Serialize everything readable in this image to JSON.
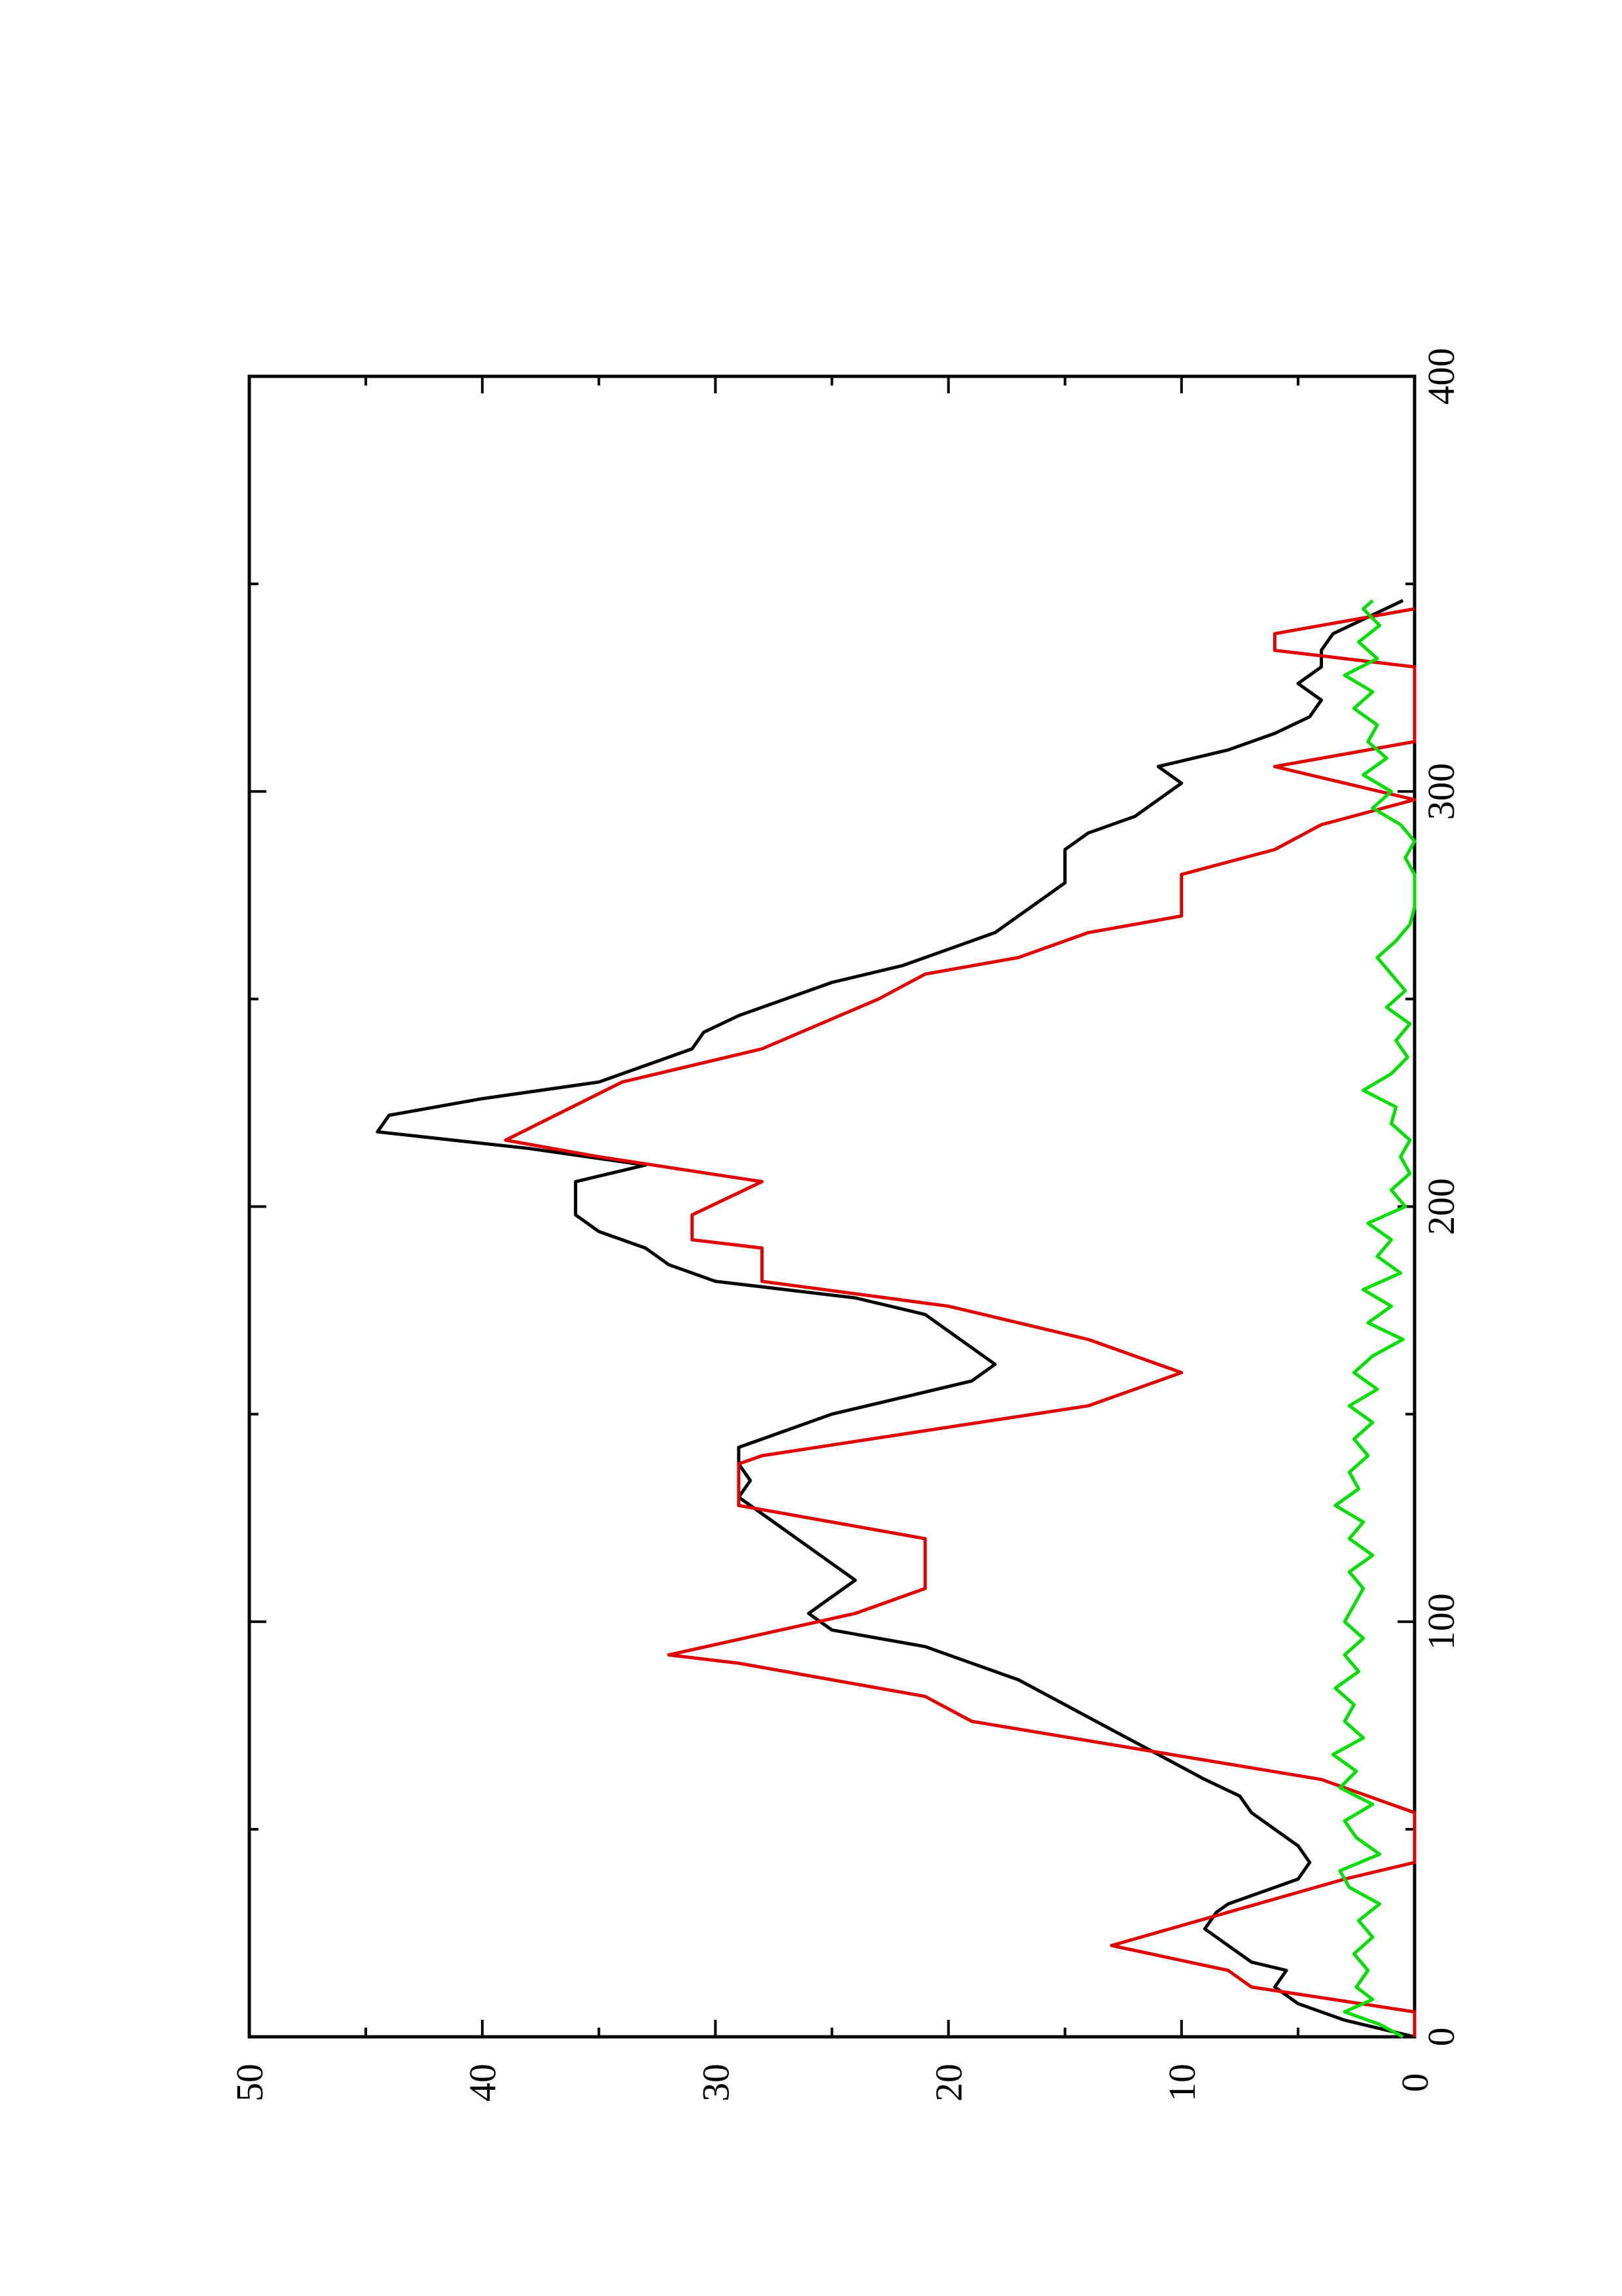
{
  "chart_data": {
    "type": "line",
    "orientation": "rotated-90-counterclockwise",
    "title": "",
    "xlabel": "",
    "ylabel": "",
    "xlim": [
      0,
      400
    ],
    "ylim": [
      0,
      50
    ],
    "xticks": [
      0,
      100,
      200,
      300,
      400
    ],
    "yticks": [
      0,
      10,
      20,
      30,
      40,
      50
    ],
    "grid": false,
    "legend": "none",
    "series": [
      {
        "color": "#000000",
        "points": [
          [
            0,
            0
          ],
          [
            4,
            3
          ],
          [
            8,
            5
          ],
          [
            12,
            6
          ],
          [
            16,
            5.5
          ],
          [
            18,
            7
          ],
          [
            22,
            8
          ],
          [
            26,
            9
          ],
          [
            30,
            8.5
          ],
          [
            32,
            8
          ],
          [
            36,
            6
          ],
          [
            38,
            5
          ],
          [
            42,
            4.5
          ],
          [
            46,
            5
          ],
          [
            50,
            6
          ],
          [
            54,
            7
          ],
          [
            58,
            7.5
          ],
          [
            62,
            9
          ],
          [
            68,
            11
          ],
          [
            74,
            13
          ],
          [
            80,
            15
          ],
          [
            86,
            17
          ],
          [
            90,
            19
          ],
          [
            94,
            21
          ],
          [
            98,
            25
          ],
          [
            102,
            26
          ],
          [
            106,
            25
          ],
          [
            110,
            24
          ],
          [
            114,
            25
          ],
          [
            118,
            26
          ],
          [
            122,
            27
          ],
          [
            126,
            28
          ],
          [
            130,
            29
          ],
          [
            134,
            28.5
          ],
          [
            138,
            29
          ],
          [
            142,
            29
          ],
          [
            146,
            27
          ],
          [
            150,
            25
          ],
          [
            154,
            22
          ],
          [
            158,
            19
          ],
          [
            162,
            18
          ],
          [
            166,
            19
          ],
          [
            170,
            20
          ],
          [
            174,
            21
          ],
          [
            178,
            24
          ],
          [
            182,
            30
          ],
          [
            186,
            32
          ],
          [
            190,
            33
          ],
          [
            194,
            35
          ],
          [
            198,
            36
          ],
          [
            202,
            36
          ],
          [
            206,
            36
          ],
          [
            210,
            33
          ],
          [
            214,
            38
          ],
          [
            218,
            44.5
          ],
          [
            222,
            44
          ],
          [
            226,
            40
          ],
          [
            230,
            35
          ],
          [
            234,
            33
          ],
          [
            238,
            31
          ],
          [
            242,
            30.5
          ],
          [
            246,
            29
          ],
          [
            250,
            27
          ],
          [
            254,
            25
          ],
          [
            258,
            22
          ],
          [
            262,
            20
          ],
          [
            266,
            18
          ],
          [
            270,
            17
          ],
          [
            274,
            16
          ],
          [
            278,
            15
          ],
          [
            282,
            15
          ],
          [
            286,
            15
          ],
          [
            290,
            14
          ],
          [
            294,
            12
          ],
          [
            298,
            11
          ],
          [
            302,
            10
          ],
          [
            306,
            11
          ],
          [
            310,
            8
          ],
          [
            314,
            6
          ],
          [
            318,
            4.5
          ],
          [
            322,
            4
          ],
          [
            326,
            5
          ],
          [
            330,
            4
          ],
          [
            334,
            4
          ],
          [
            338,
            3.5
          ],
          [
            342,
            2
          ],
          [
            346,
            0.5
          ]
        ]
      },
      {
        "color": "#e00000",
        "points": [
          [
            0,
            0
          ],
          [
            6,
            0
          ],
          [
            12,
            7
          ],
          [
            16,
            8
          ],
          [
            22,
            13
          ],
          [
            30,
            8
          ],
          [
            38,
            3
          ],
          [
            42,
            0
          ],
          [
            54,
            0
          ],
          [
            62,
            4
          ],
          [
            76,
            19
          ],
          [
            82,
            21
          ],
          [
            90,
            29
          ],
          [
            92,
            32
          ],
          [
            102,
            24
          ],
          [
            108,
            21
          ],
          [
            120,
            21
          ],
          [
            126,
            27
          ],
          [
            128,
            29
          ],
          [
            138,
            29
          ],
          [
            140,
            28
          ],
          [
            152,
            14
          ],
          [
            160,
            10
          ],
          [
            168,
            14
          ],
          [
            172,
            17
          ],
          [
            176,
            20
          ],
          [
            182,
            28
          ],
          [
            190,
            28
          ],
          [
            192,
            31
          ],
          [
            198,
            31
          ],
          [
            206,
            28
          ],
          [
            212,
            35
          ],
          [
            216,
            39
          ],
          [
            230,
            34
          ],
          [
            238,
            28
          ],
          [
            250,
            23
          ],
          [
            256,
            21
          ],
          [
            260,
            17
          ],
          [
            266,
            14
          ],
          [
            270,
            10
          ],
          [
            280,
            10
          ],
          [
            286,
            6
          ],
          [
            292,
            4
          ],
          [
            298,
            0
          ],
          [
            306,
            6
          ],
          [
            312,
            0
          ],
          [
            330,
            0
          ],
          [
            334,
            6
          ],
          [
            338,
            6
          ],
          [
            344,
            0
          ]
        ]
      },
      {
        "color": "#00e000",
        "points": [
          [
            0,
            0.5
          ],
          [
            3,
            1.5
          ],
          [
            6,
            3
          ],
          [
            9,
            1.8
          ],
          [
            12,
            2.5
          ],
          [
            16,
            2
          ],
          [
            20,
            2.6
          ],
          [
            24,
            1.8
          ],
          [
            28,
            2.4
          ],
          [
            32,
            1.5
          ],
          [
            36,
            2.8
          ],
          [
            40,
            3.2
          ],
          [
            44,
            1.5
          ],
          [
            48,
            2.5
          ],
          [
            52,
            3
          ],
          [
            56,
            1.8
          ],
          [
            60,
            3.2
          ],
          [
            64,
            2.5
          ],
          [
            68,
            3.5
          ],
          [
            72,
            2.2
          ],
          [
            76,
            3
          ],
          [
            80,
            2.6
          ],
          [
            84,
            3.4
          ],
          [
            88,
            2.4
          ],
          [
            92,
            3
          ],
          [
            96,
            2.2
          ],
          [
            100,
            3
          ],
          [
            104,
            2.6
          ],
          [
            108,
            2.2
          ],
          [
            112,
            2.8
          ],
          [
            116,
            1.8
          ],
          [
            120,
            2.8
          ],
          [
            124,
            2.2
          ],
          [
            128,
            3.4
          ],
          [
            132,
            2.4
          ],
          [
            136,
            2.8
          ],
          [
            140,
            2
          ],
          [
            144,
            2.6
          ],
          [
            148,
            1.8
          ],
          [
            152,
            2.8
          ],
          [
            156,
            1.6
          ],
          [
            160,
            2.6
          ],
          [
            164,
            1.8
          ],
          [
            168,
            0.5
          ],
          [
            172,
            2
          ],
          [
            176,
            1
          ],
          [
            180,
            2.2
          ],
          [
            184,
            0.6
          ],
          [
            188,
            1.6
          ],
          [
            192,
            1
          ],
          [
            196,
            2
          ],
          [
            200,
            0.4
          ],
          [
            204,
            1
          ],
          [
            208,
            0.2
          ],
          [
            212,
            0.6
          ],
          [
            216,
            0.2
          ],
          [
            220,
            1
          ],
          [
            224,
            0.8
          ],
          [
            228,
            2.2
          ],
          [
            232,
            1
          ],
          [
            236,
            0.3
          ],
          [
            240,
            0.8
          ],
          [
            244,
            0.2
          ],
          [
            248,
            1.2
          ],
          [
            252,
            0.4
          ],
          [
            256,
            1
          ],
          [
            260,
            1.6
          ],
          [
            264,
            0.8
          ],
          [
            268,
            0.2
          ],
          [
            272,
            0
          ],
          [
            276,
            0
          ],
          [
            280,
            0
          ],
          [
            284,
            0.4
          ],
          [
            288,
            0
          ],
          [
            292,
            0.6
          ],
          [
            296,
            1.8
          ],
          [
            300,
            1
          ],
          [
            304,
            2.2
          ],
          [
            308,
            1.2
          ],
          [
            312,
            2
          ],
          [
            316,
            1.6
          ],
          [
            320,
            2.6
          ],
          [
            324,
            1.8
          ],
          [
            328,
            3
          ],
          [
            332,
            1.6
          ],
          [
            336,
            2.4
          ],
          [
            340,
            1.5
          ],
          [
            344,
            2.2
          ],
          [
            346,
            1.8
          ]
        ]
      }
    ]
  }
}
